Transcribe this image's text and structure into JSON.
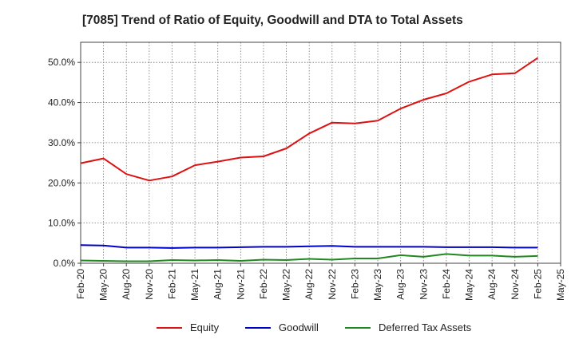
{
  "chart_data": {
    "type": "line",
    "title": "[7085]  Trend of Ratio of Equity, Goodwill and DTA to Total Assets",
    "xlabel": "",
    "ylabel": "",
    "x": [
      "Feb-20",
      "May-20",
      "Aug-20",
      "Nov-20",
      "Feb-21",
      "May-21",
      "Aug-21",
      "Nov-21",
      "Feb-22",
      "May-22",
      "Aug-22",
      "Nov-22",
      "Feb-23",
      "May-23",
      "Aug-23",
      "Nov-23",
      "Feb-24",
      "May-24",
      "Aug-24",
      "Nov-24",
      "Feb-25"
    ],
    "x_ticks": [
      "Feb-20",
      "May-20",
      "Aug-20",
      "Nov-20",
      "Feb-21",
      "May-21",
      "Aug-21",
      "Nov-21",
      "Feb-22",
      "May-22",
      "Aug-22",
      "Nov-22",
      "Feb-23",
      "May-23",
      "Aug-23",
      "Nov-23",
      "Feb-24",
      "May-24",
      "Aug-24",
      "Nov-24",
      "Feb-25",
      "May-25"
    ],
    "ylim": [
      0,
      55
    ],
    "y_ticks": [
      0,
      10,
      20,
      30,
      40,
      50
    ],
    "y_tick_labels": [
      "0.0%",
      "10.0%",
      "20.0%",
      "30.0%",
      "40.0%",
      "50.0%"
    ],
    "grid": true,
    "legend_position": "bottom",
    "series": [
      {
        "name": "Equity",
        "color": "#dd1111",
        "values": [
          24.9,
          26.1,
          22.2,
          20.6,
          21.6,
          24.4,
          25.3,
          26.3,
          26.6,
          28.6,
          32.3,
          35.0,
          34.8,
          35.5,
          38.5,
          40.7,
          42.3,
          45.2,
          47.0,
          47.3,
          51.1
        ]
      },
      {
        "name": "Goodwill",
        "color": "#0000cc",
        "values": [
          4.5,
          4.4,
          3.9,
          3.9,
          3.8,
          3.9,
          3.9,
          4.0,
          4.1,
          4.1,
          4.2,
          4.3,
          4.1,
          4.1,
          4.1,
          4.1,
          4.0,
          4.0,
          4.0,
          3.9,
          3.9
        ]
      },
      {
        "name": "Deferred Tax Assets",
        "color": "#228822",
        "values": [
          0.7,
          0.6,
          0.5,
          0.5,
          0.8,
          0.7,
          0.8,
          0.6,
          0.9,
          0.8,
          1.1,
          0.9,
          1.2,
          1.2,
          2.0,
          1.6,
          2.3,
          1.9,
          1.9,
          1.6,
          1.8
        ]
      }
    ]
  }
}
